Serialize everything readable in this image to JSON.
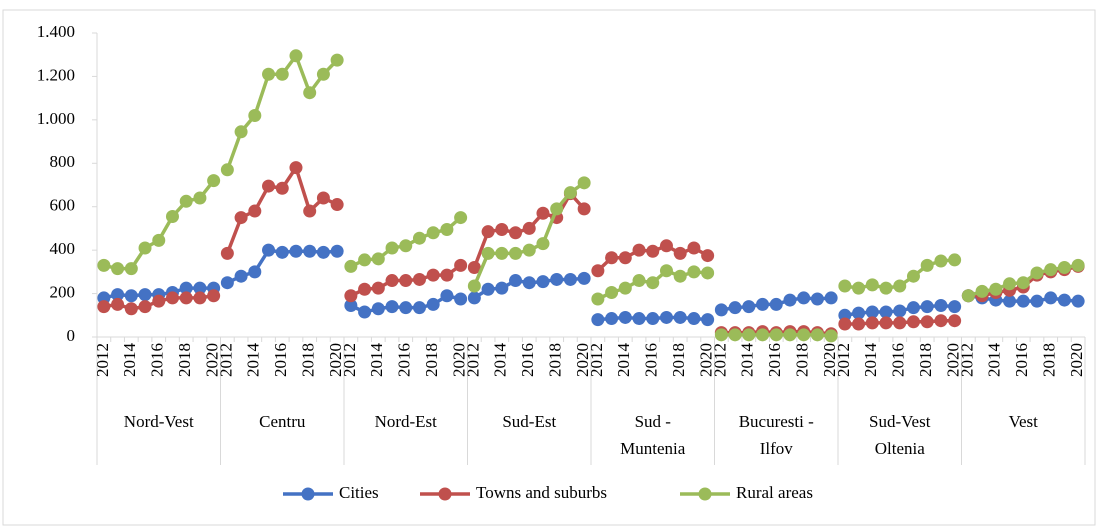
{
  "chart_data": {
    "type": "line",
    "groups": [
      [
        "Nord-Vest"
      ],
      [
        "Centru"
      ],
      [
        "Nord-Est"
      ],
      [
        "Sud-Est"
      ],
      [
        "Sud -",
        "Muntenia"
      ],
      [
        "Bucuresti -",
        "Ilfov"
      ],
      [
        "Sud-Vest",
        "Oltenia"
      ],
      [
        "Vest"
      ]
    ],
    "categories": [
      "2012",
      null,
      "2014",
      null,
      "2016",
      null,
      "2018",
      null,
      "2020",
      "2012",
      null,
      "2014",
      null,
      "2016",
      null,
      "2018",
      null,
      "2020",
      "2012",
      null,
      "2014",
      null,
      "2016",
      null,
      "2018",
      null,
      "2020",
      "2012",
      null,
      "2014",
      null,
      "2016",
      null,
      "2018",
      null,
      "2020",
      "2012",
      null,
      "2014",
      null,
      "2016",
      null,
      "2018",
      null,
      "2020",
      "2012",
      null,
      "2014",
      null,
      "2016",
      null,
      "2018",
      null,
      "2020",
      "2012",
      null,
      "2014",
      null,
      "2016",
      null,
      "2018",
      null,
      "2020",
      "2012",
      null,
      "2014",
      null,
      "2016",
      null,
      "2018",
      null,
      "2020"
    ],
    "series": [
      {
        "name": "Cities",
        "color": "#4472c4",
        "values": [
          180,
          195,
          190,
          195,
          195,
          205,
          225,
          225,
          225,
          250,
          280,
          300,
          400,
          390,
          395,
          395,
          390,
          395,
          145,
          115,
          130,
          140,
          135,
          135,
          150,
          190,
          175,
          180,
          220,
          225,
          260,
          250,
          255,
          265,
          265,
          270,
          80,
          85,
          90,
          85,
          85,
          90,
          90,
          85,
          80,
          125,
          135,
          140,
          150,
          150,
          170,
          180,
          175,
          180,
          100,
          110,
          115,
          115,
          120,
          135,
          140,
          145,
          140,
          190,
          180,
          170,
          165,
          165,
          165,
          180,
          170,
          165
        ]
      },
      {
        "name": "Towns and suburbs",
        "color": "#c0504d",
        "values": [
          140,
          150,
          130,
          140,
          165,
          180,
          180,
          180,
          190,
          385,
          550,
          580,
          695,
          685,
          780,
          580,
          640,
          610,
          190,
          220,
          225,
          260,
          260,
          265,
          285,
          285,
          330,
          320,
          485,
          495,
          480,
          500,
          570,
          550,
          660,
          590,
          305,
          365,
          365,
          400,
          395,
          420,
          385,
          410,
          375,
          20,
          20,
          20,
          25,
          20,
          25,
          25,
          20,
          15,
          60,
          60,
          65,
          65,
          65,
          70,
          70,
          75,
          75,
          190,
          190,
          205,
          215,
          230,
          285,
          300,
          310,
          325
        ]
      },
      {
        "name": "Rural areas",
        "color": "#9bbb59",
        "values": [
          330,
          315,
          315,
          410,
          445,
          555,
          625,
          640,
          720,
          770,
          945,
          1020,
          1210,
          1210,
          1295,
          1125,
          1210,
          1275,
          325,
          355,
          360,
          410,
          420,
          455,
          480,
          495,
          550,
          235,
          385,
          385,
          385,
          400,
          430,
          590,
          665,
          710,
          175,
          205,
          225,
          260,
          250,
          305,
          280,
          300,
          295,
          10,
          10,
          10,
          10,
          10,
          10,
          10,
          10,
          5,
          235,
          225,
          240,
          225,
          235,
          280,
          330,
          350,
          355,
          190,
          210,
          220,
          245,
          250,
          295,
          310,
          320,
          330
        ]
      }
    ],
    "ylim": [
      0,
      1400
    ],
    "yticks": [
      0,
      200,
      400,
      600,
      800,
      {
        "value": 1000,
        "label": "1.000"
      },
      {
        "value": 1200,
        "label": "1.200"
      },
      {
        "value": 1400,
        "label": "1.400"
      }
    ],
    "grid": false
  }
}
